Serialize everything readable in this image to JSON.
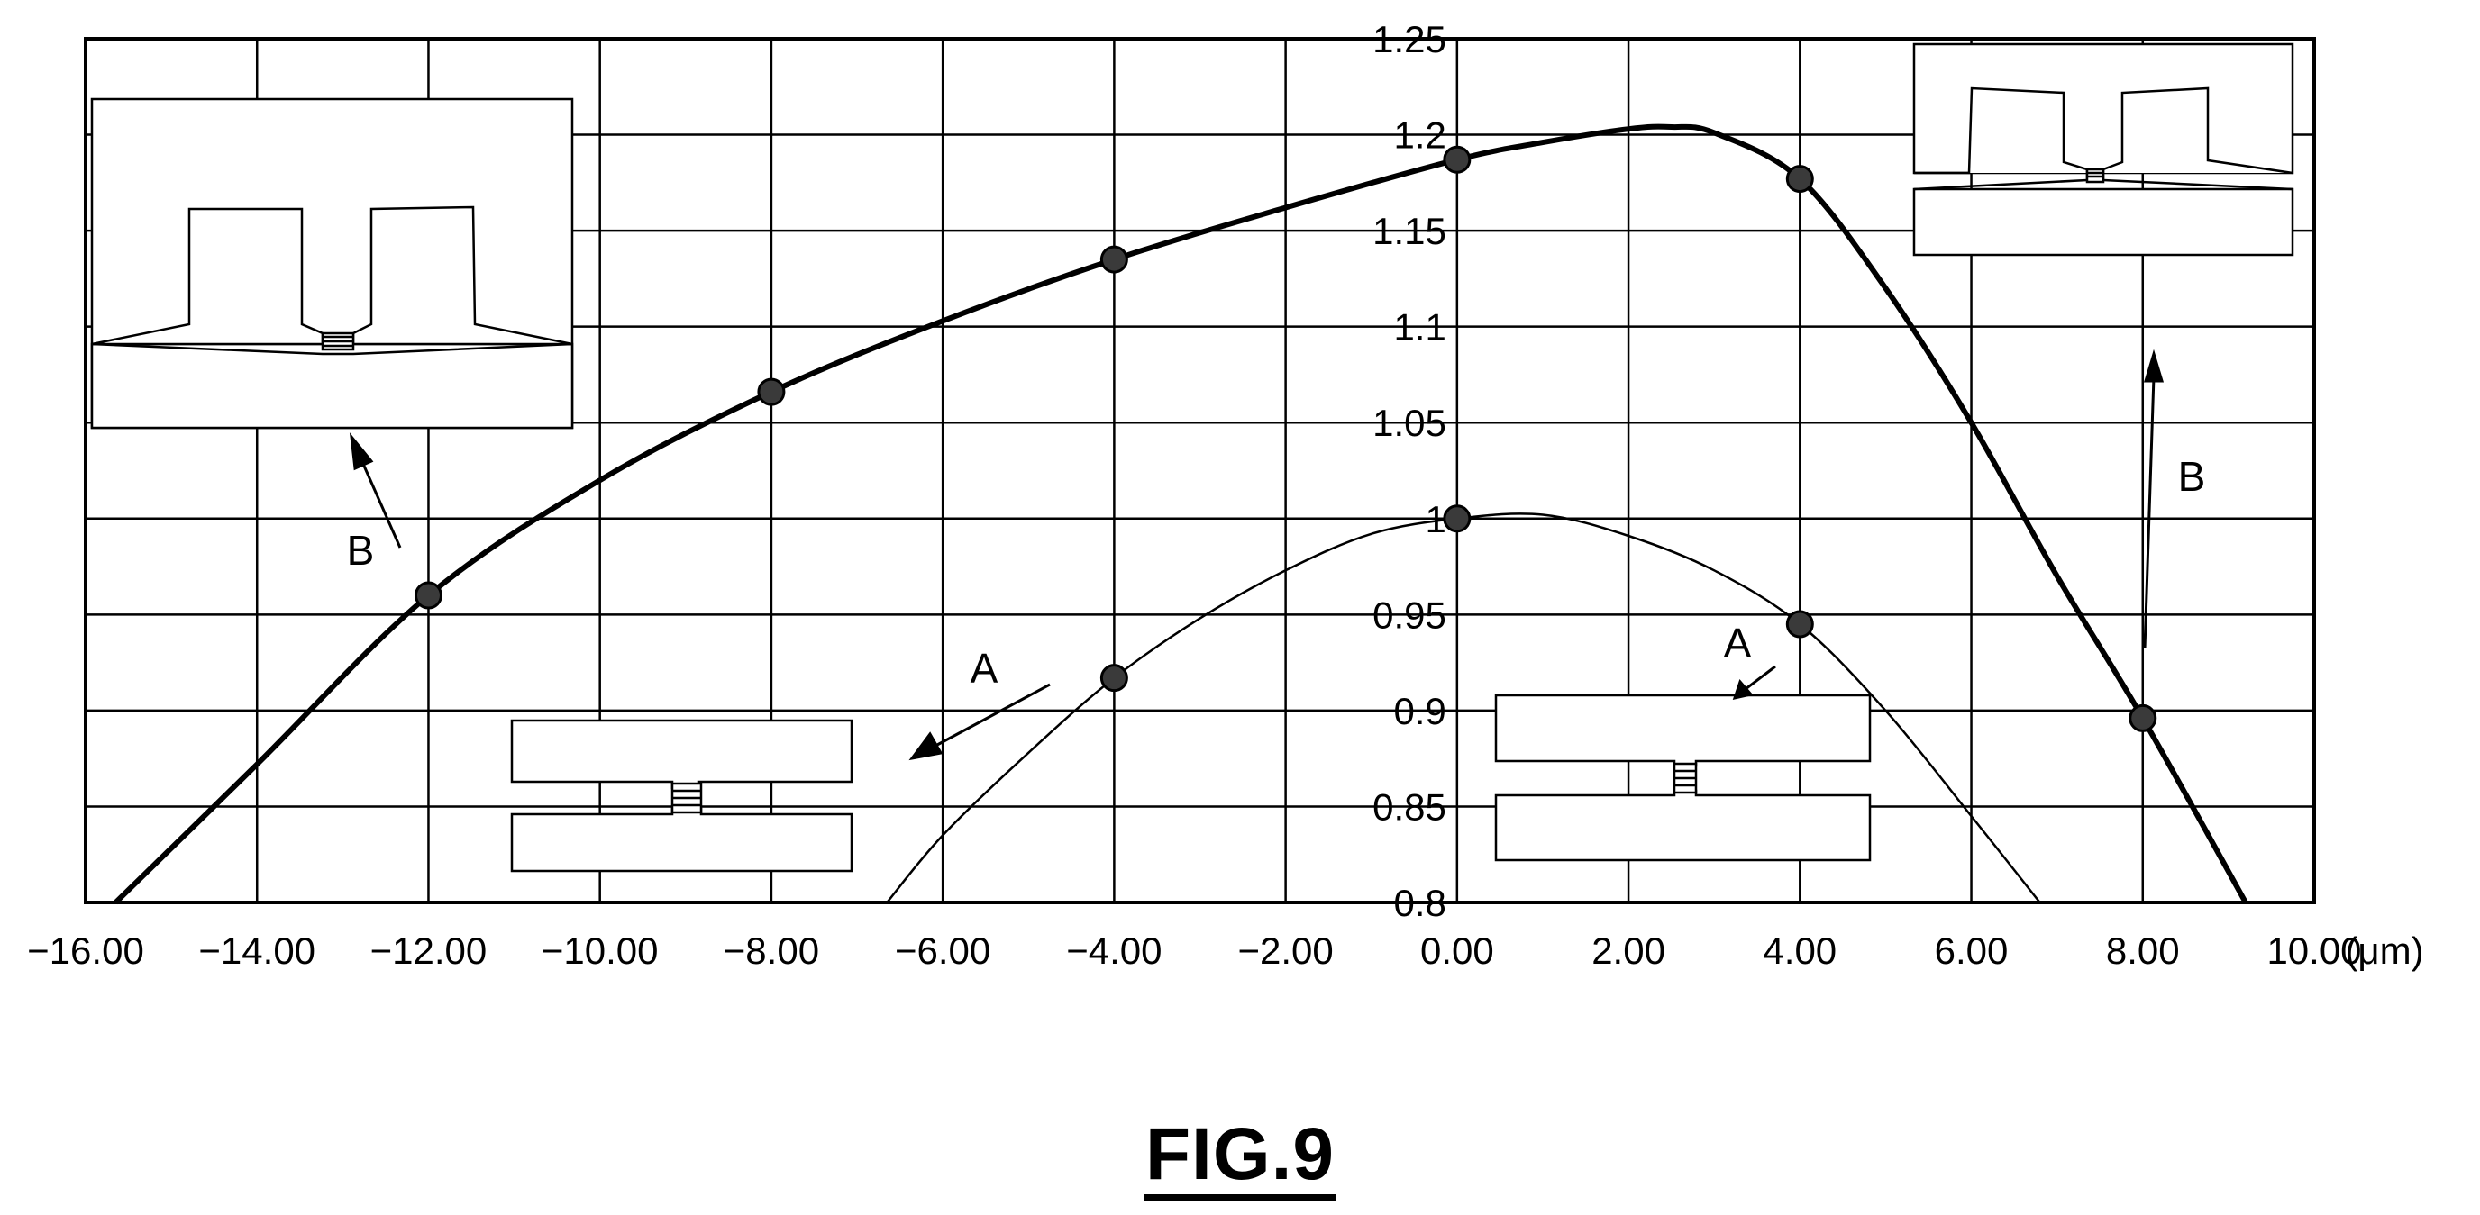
{
  "figure_label": "FIG.9",
  "chart_data": {
    "type": "line",
    "x_ticks": [
      "-16.00",
      "-14.00",
      "-12.00",
      "-10.00",
      "-8.00",
      "-6.00",
      "-4.00",
      "-2.00",
      "0.00",
      "2.00",
      "4.00",
      "6.00",
      "8.00",
      "10.00"
    ],
    "x_unit": "(μm)",
    "y_ticks": [
      "1.25",
      "1.2",
      "1.15",
      "1.1",
      "1.05",
      "1",
      "0.95",
      "0.9",
      "0.85",
      "0.8"
    ],
    "xlim": [
      -16,
      10
    ],
    "ylim": [
      0.8,
      1.25
    ],
    "grid": true,
    "series": [
      {
        "name": "B",
        "line_weight": "bold",
        "markers": [
          [
            -12,
            0.96
          ],
          [
            -8,
            1.066
          ],
          [
            -4,
            1.135
          ],
          [
            0,
            1.187
          ],
          [
            4,
            1.177
          ],
          [
            8,
            0.896
          ]
        ],
        "curve": [
          [
            -15.65,
            0.8
          ],
          [
            -14,
            0.872
          ],
          [
            -12,
            0.96
          ],
          [
            -10,
            1.02
          ],
          [
            -8,
            1.066
          ],
          [
            -6,
            1.103
          ],
          [
            -4,
            1.135
          ],
          [
            -2,
            1.162
          ],
          [
            0,
            1.187
          ],
          [
            1,
            1.196
          ],
          [
            2,
            1.203
          ],
          [
            2.5,
            1.204
          ],
          [
            3,
            1.201
          ],
          [
            4,
            1.177
          ],
          [
            5,
            1.12
          ],
          [
            6,
            1.05
          ],
          [
            7,
            0.97
          ],
          [
            8,
            0.896
          ],
          [
            9.2,
            0.8
          ]
        ]
      },
      {
        "name": "A",
        "line_weight": "thin",
        "markers": [
          [
            -4,
            0.917
          ],
          [
            0,
            1.0
          ],
          [
            4,
            0.945
          ]
        ],
        "curve": [
          [
            -6.65,
            0.8
          ],
          [
            -6,
            0.835
          ],
          [
            -5,
            0.878
          ],
          [
            -4,
            0.917
          ],
          [
            -3,
            0.948
          ],
          [
            -2,
            0.973
          ],
          [
            -1,
            0.992
          ],
          [
            0,
            1.0
          ],
          [
            1,
            1.002
          ],
          [
            2,
            0.991
          ],
          [
            3,
            0.973
          ],
          [
            4,
            0.945
          ],
          [
            5,
            0.9
          ],
          [
            6,
            0.845
          ],
          [
            6.8,
            0.8
          ]
        ]
      }
    ],
    "annotations": [
      "B",
      "A",
      "A",
      "B"
    ]
  }
}
